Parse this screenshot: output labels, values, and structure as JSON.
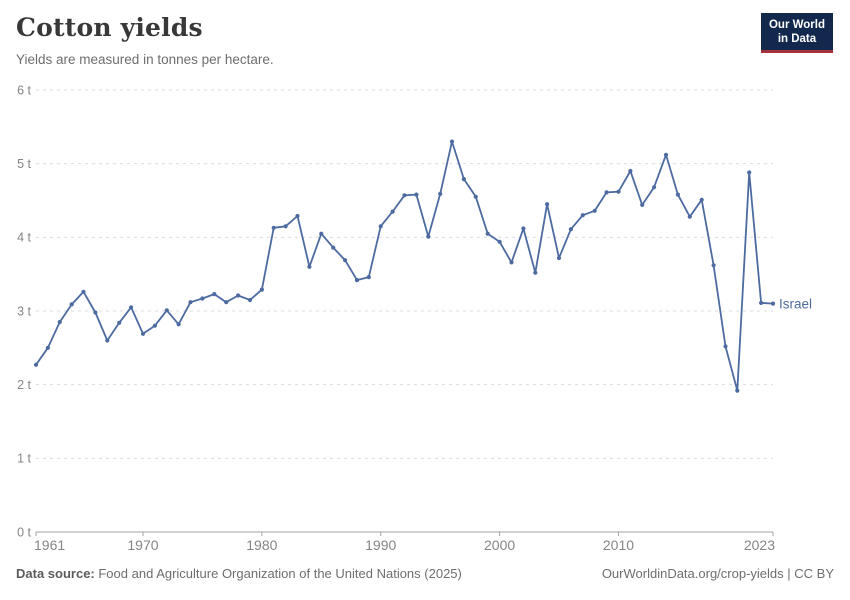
{
  "header": {
    "title": "Cotton yields",
    "subtitle": "Yields are measured in tonnes per hectare.",
    "logo": {
      "line1": "Our World",
      "line2": "in Data"
    }
  },
  "colors": {
    "line": "#4D6BA0",
    "logo_bg": "#12294d",
    "logo_accent": "#a8323b",
    "gridline": "#dcdcdc",
    "axis": "#a3a3a3",
    "tick_label": "#858585"
  },
  "chart_data": {
    "type": "line",
    "title": "Cotton yields",
    "subtitle": "Yields are measured in tonnes per hectare.",
    "unit": "tonnes per hectare",
    "grid": "horizontal-dashed",
    "legend_position": "end-of-line-label",
    "xlim": [
      1961,
      2023
    ],
    "ylim": [
      0,
      6
    ],
    "x_ticks": [
      1961,
      1970,
      1980,
      1990,
      2000,
      2010,
      2023
    ],
    "y_ticks": [
      {
        "value": 0,
        "label": "0 t"
      },
      {
        "value": 1,
        "label": "1 t"
      },
      {
        "value": 2,
        "label": "2 t"
      },
      {
        "value": 3,
        "label": "3 t"
      },
      {
        "value": 4,
        "label": "4 t"
      },
      {
        "value": 5,
        "label": "5 t"
      },
      {
        "value": 6,
        "label": "6 t"
      }
    ],
    "series": [
      {
        "name": "Israel",
        "color": "#4D6BA0",
        "x": [
          1961,
          1962,
          1963,
          1964,
          1965,
          1966,
          1967,
          1968,
          1969,
          1970,
          1971,
          1972,
          1973,
          1974,
          1975,
          1976,
          1977,
          1978,
          1979,
          1980,
          1981,
          1982,
          1983,
          1984,
          1985,
          1986,
          1987,
          1988,
          1989,
          1990,
          1991,
          1992,
          1993,
          1994,
          1995,
          1996,
          1997,
          1998,
          1999,
          2000,
          2001,
          2002,
          2003,
          2004,
          2005,
          2006,
          2007,
          2008,
          2009,
          2010,
          2011,
          2012,
          2013,
          2014,
          2015,
          2016,
          2017,
          2018,
          2019,
          2020,
          2021,
          2022,
          2023
        ],
        "values": [
          2.27,
          2.5,
          2.85,
          3.09,
          3.26,
          2.98,
          2.6,
          2.84,
          3.05,
          2.69,
          2.8,
          3.01,
          2.82,
          3.12,
          3.17,
          3.23,
          3.12,
          3.21,
          3.15,
          3.29,
          4.13,
          4.15,
          4.29,
          3.6,
          4.05,
          3.86,
          3.69,
          3.42,
          3.46,
          4.15,
          4.35,
          4.57,
          4.58,
          4.01,
          4.59,
          5.3,
          4.79,
          4.55,
          4.05,
          3.94,
          3.66,
          4.12,
          3.52,
          4.45,
          3.72,
          4.11,
          4.3,
          4.36,
          4.61,
          4.62,
          4.9,
          4.44,
          4.68,
          5.12,
          4.58,
          4.28,
          4.51,
          3.62,
          2.52,
          1.92,
          4.88,
          3.11,
          3.1
        ]
      }
    ]
  },
  "footer": {
    "datasource_label": "Data source:",
    "datasource_text": " Food and Agriculture Organization of the United Nations (2025)",
    "link": "OurWorldinData.org/crop-yields",
    "separator": " | ",
    "license": "CC BY"
  }
}
